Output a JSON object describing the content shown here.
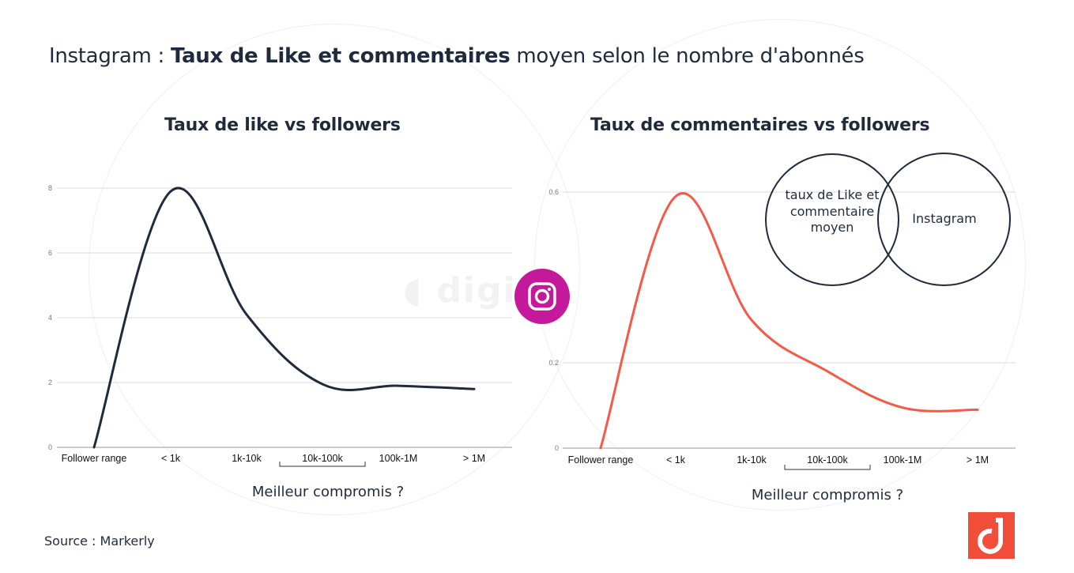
{
  "title": {
    "prefix": "Instagram : ",
    "bold": "Taux de Like et commentaires",
    "suffix": " moyen selon le nombre d'abonnés"
  },
  "venn": {
    "left": "taux de Like et commentaire moyen",
    "right": "Instagram"
  },
  "source": "Source : Markerly",
  "colors": {
    "like_line": "#1f2b3d",
    "comment_line": "#f45a45",
    "instagram": "#c5199c",
    "brand": "#f04e3a"
  },
  "chart_data": [
    {
      "type": "line",
      "title": "Taux de like vs followers",
      "categories": [
        "Follower range",
        "< 1k",
        "1k-10k",
        "10k-100k",
        "100k-1M",
        "> 1M"
      ],
      "series": [
        {
          "values": [
            0,
            7.9,
            4.1,
            1.95,
            1.9,
            1.8
          ]
        }
      ],
      "yticks": [
        0,
        2,
        4,
        6,
        8
      ],
      "ylim": [
        0,
        8
      ],
      "grid": true,
      "bracket_category": "10k-100k",
      "annotation": "Meilleur compromis ?"
    },
    {
      "type": "line",
      "title": "Taux de commentaires vs followers",
      "categories": [
        "Follower range",
        "< 1k",
        "1k-10k",
        "10k-100k",
        "100k-1M",
        "> 1M"
      ],
      "series": [
        {
          "values": [
            0,
            0.59,
            0.3,
            0.18,
            0.095,
            0.09
          ]
        }
      ],
      "yticks": [
        0,
        0.2,
        0.6
      ],
      "ylim": [
        0,
        0.6
      ],
      "grid": true,
      "bracket_category": "10k-100k",
      "annotation": "Meilleur compromis ?"
    }
  ]
}
